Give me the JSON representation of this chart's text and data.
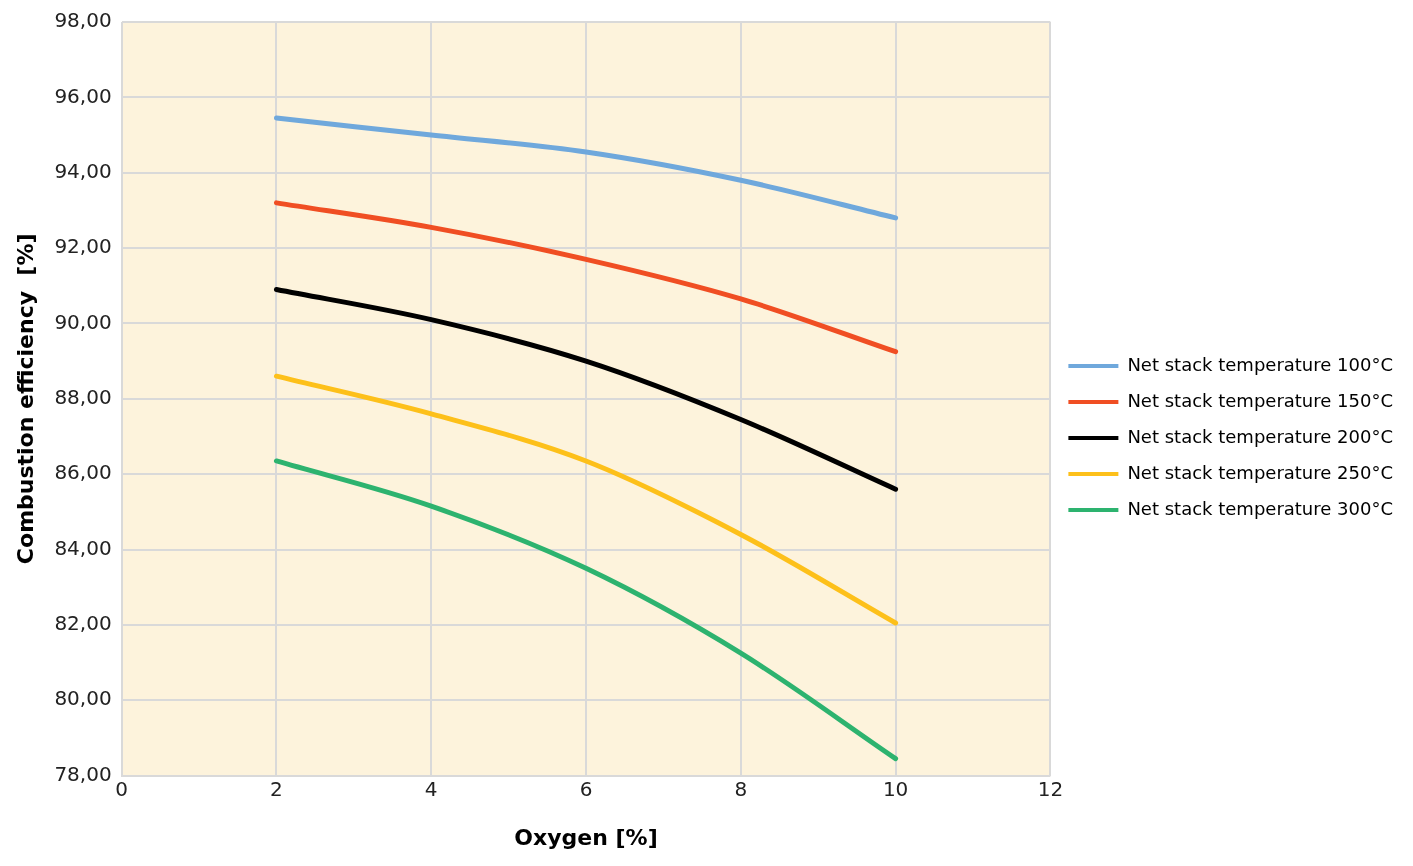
{
  "chart_data": {
    "type": "line",
    "xlabel": "Oxygen [%]",
    "ylabel": "Combustion efficiency  [%]",
    "x": [
      2,
      4,
      6,
      8,
      10
    ],
    "series": [
      {
        "name": "Net stack temperature 100°C",
        "color": "#6fa8dc",
        "values": [
          95.45,
          95.0,
          94.55,
          93.8,
          92.8
        ]
      },
      {
        "name": "Net stack temperature 150°C",
        "color": "#f04e23",
        "values": [
          93.2,
          92.55,
          91.7,
          90.65,
          89.25
        ]
      },
      {
        "name": "Net stack temperature 200°C",
        "color": "#000000",
        "values": [
          90.9,
          90.1,
          89.0,
          87.45,
          85.6
        ]
      },
      {
        "name": "Net stack temperature 250°C",
        "color": "#fdc01a",
        "values": [
          88.6,
          87.6,
          86.35,
          84.4,
          82.05
        ]
      },
      {
        "name": "Net stack temperature 300°C",
        "color": "#2db36f",
        "values": [
          86.35,
          85.15,
          83.5,
          81.25,
          78.45
        ]
      }
    ],
    "xlim": [
      0,
      12
    ],
    "xticks": [
      0,
      2,
      4,
      6,
      8,
      10,
      12
    ],
    "ylim": [
      78,
      98
    ],
    "yticks": [
      {
        "value": 78,
        "label": "78,00"
      },
      {
        "value": 80,
        "label": "80,00"
      },
      {
        "value": 82,
        "label": "82,00"
      },
      {
        "value": 84,
        "label": "84,00"
      },
      {
        "value": 86,
        "label": "86,00"
      },
      {
        "value": 88,
        "label": "88,00"
      },
      {
        "value": 90,
        "label": "90,00"
      },
      {
        "value": 92,
        "label": "92,00"
      },
      {
        "value": 94,
        "label": "94,00"
      },
      {
        "value": 96,
        "label": "96,00"
      },
      {
        "value": 98,
        "label": "98,00"
      }
    ],
    "grid": true,
    "legend": "right",
    "marker": "none",
    "line_style": "solid"
  }
}
